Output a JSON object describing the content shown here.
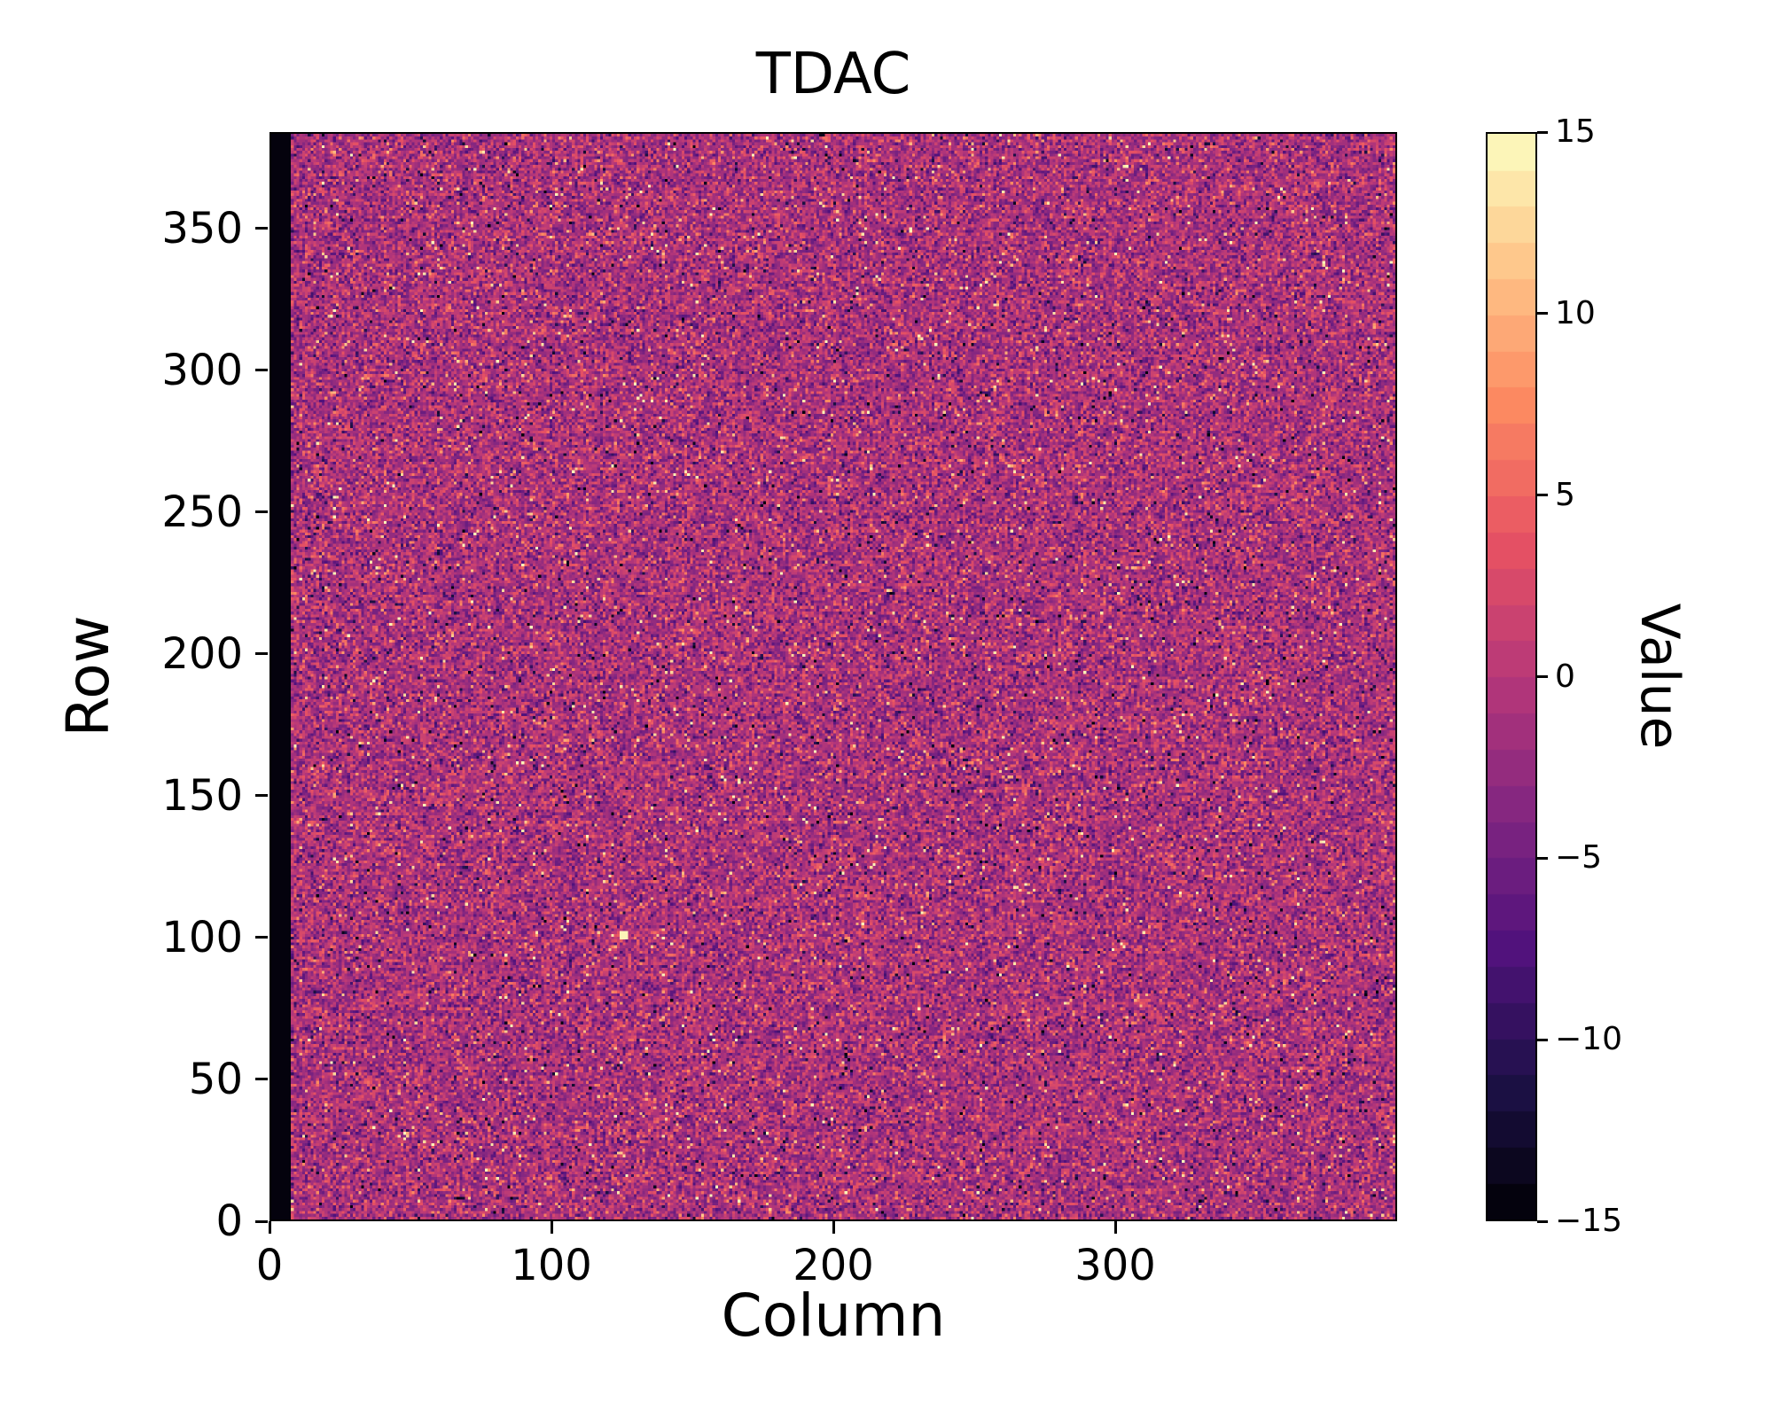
{
  "chart_data": {
    "type": "heatmap",
    "title": "TDAC",
    "xlabel": "Column",
    "ylabel": "Row",
    "x_range": [
      0,
      400
    ],
    "y_range": [
      0,
      384
    ],
    "x_ticks": [
      0,
      100,
      200,
      300
    ],
    "x_tick_labels": [
      "0",
      "100",
      "200",
      "300"
    ],
    "y_ticks": [
      0,
      50,
      100,
      150,
      200,
      250,
      300,
      350
    ],
    "y_tick_labels": [
      "0",
      "50",
      "100",
      "150",
      "200",
      "250",
      "300",
      "350"
    ],
    "grid": {
      "cols": 400,
      "rows": 384
    },
    "legend_position": "right-colorbar",
    "grid_lines": false,
    "colorbar": {
      "label": "Value",
      "vmin": -15,
      "vmax": 15,
      "levels": 30,
      "tick_values": [
        15,
        10,
        5,
        0,
        -5,
        -10,
        -15
      ],
      "tick_labels": [
        "15",
        "10",
        "5",
        "0",
        "−5",
        "−10",
        "−15"
      ],
      "colormap": "magma",
      "discrete_banding": true
    },
    "colormap_stops": [
      {
        "t": 0.0,
        "c": "#000004"
      },
      {
        "t": 0.125,
        "c": "#1d1147"
      },
      {
        "t": 0.25,
        "c": "#51127c"
      },
      {
        "t": 0.375,
        "c": "#822681"
      },
      {
        "t": 0.5,
        "c": "#b73779"
      },
      {
        "t": 0.625,
        "c": "#e75263"
      },
      {
        "t": 0.75,
        "c": "#fc8961"
      },
      {
        "t": 0.875,
        "c": "#fec488"
      },
      {
        "t": 1.0,
        "c": "#fcfdbf"
      }
    ],
    "noise": {
      "description": "per-pixel TDAC tuning values: random noise centered near 0 (purple/magenta) with scattered bright (orange/white) and dark speckles; leftmost columns saturated at -15 (black stripe); one bright spot near column 125, row 100",
      "mean": -1.0,
      "std": 3.2,
      "speckle_fraction": 0.06,
      "stripe_columns": 7,
      "stripe_value": -15,
      "bright_spot": {
        "col": 125,
        "row": 100,
        "value": 15
      }
    },
    "seed": 42
  }
}
